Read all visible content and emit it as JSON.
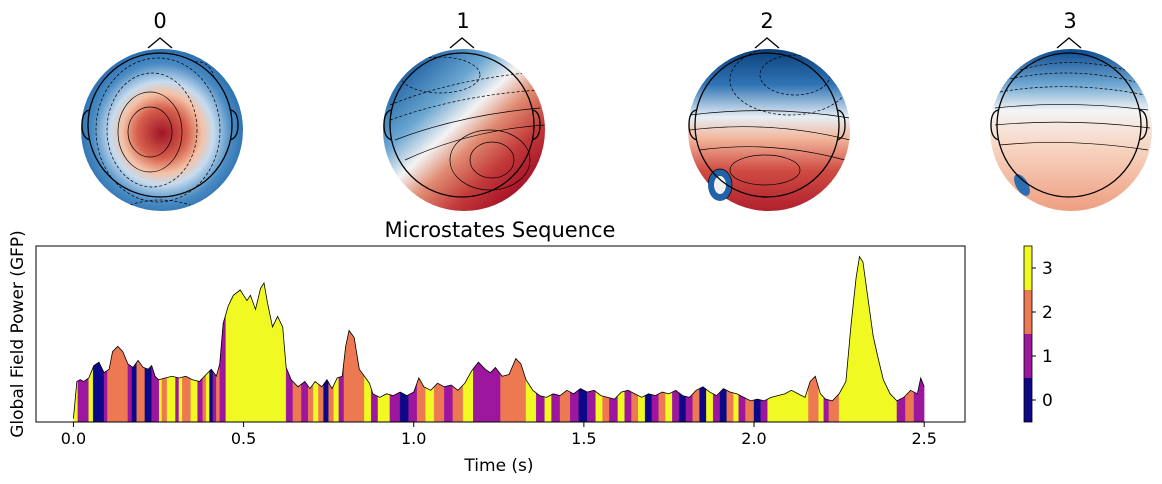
{
  "chart_data": {
    "type": "area",
    "title": "Microstates Sequence",
    "xlabel": "Time (s)",
    "ylabel": "Global Field Power (GFP)",
    "xlim": [
      -0.11,
      2.62
    ],
    "x_ticks": [
      {
        "value": 0.0,
        "label": "0.0"
      },
      {
        "value": 0.5,
        "label": "0.5"
      },
      {
        "value": 1.0,
        "label": "1.0"
      },
      {
        "value": 1.5,
        "label": "1.5"
      },
      {
        "value": 2.0,
        "label": "2.0"
      },
      {
        "value": 2.5,
        "label": "2.5"
      }
    ],
    "ylim": [
      0,
      10
    ],
    "y_ticks_shown": false,
    "grid": false,
    "colormap": "plasma",
    "state_colors": {
      "0": "#0d0887",
      "1": "#9c179e",
      "2": "#ed7953",
      "3": "#f0f921"
    },
    "colorbar": {
      "labels": [
        {
          "value": 0,
          "label": "0"
        },
        {
          "value": 1,
          "label": "1"
        },
        {
          "value": 2,
          "label": "2"
        },
        {
          "value": 3,
          "label": "3"
        }
      ],
      "range": [
        -0.5,
        3.5
      ]
    },
    "topomaps": [
      {
        "label": "0",
        "state": 0
      },
      {
        "label": "1",
        "state": 1
      },
      {
        "label": "2",
        "state": 2
      },
      {
        "label": "3",
        "state": 3
      }
    ],
    "gfp_curve": [
      [
        0.0,
        0.2
      ],
      [
        0.01,
        2.3
      ],
      [
        0.02,
        2.4
      ],
      [
        0.03,
        2.3
      ],
      [
        0.045,
        2.5
      ],
      [
        0.06,
        3.2
      ],
      [
        0.075,
        3.4
      ],
      [
        0.09,
        2.8
      ],
      [
        0.105,
        3.0
      ],
      [
        0.115,
        4.0
      ],
      [
        0.13,
        4.3
      ],
      [
        0.145,
        4.0
      ],
      [
        0.16,
        3.3
      ],
      [
        0.175,
        3.1
      ],
      [
        0.19,
        3.5
      ],
      [
        0.205,
        3.1
      ],
      [
        0.22,
        3.0
      ],
      [
        0.23,
        3.2
      ],
      [
        0.24,
        2.6
      ],
      [
        0.25,
        2.4
      ],
      [
        0.27,
        2.5
      ],
      [
        0.29,
        2.6
      ],
      [
        0.31,
        2.5
      ],
      [
        0.33,
        2.6
      ],
      [
        0.35,
        2.4
      ],
      [
        0.37,
        2.3
      ],
      [
        0.39,
        2.7
      ],
      [
        0.405,
        3.0
      ],
      [
        0.42,
        2.6
      ],
      [
        0.43,
        3.3
      ],
      [
        0.44,
        5.6
      ],
      [
        0.455,
        6.6
      ],
      [
        0.47,
        7.2
      ],
      [
        0.49,
        7.5
      ],
      [
        0.51,
        6.9
      ],
      [
        0.52,
        7.2
      ],
      [
        0.535,
        6.4
      ],
      [
        0.55,
        7.6
      ],
      [
        0.56,
        7.9
      ],
      [
        0.57,
        6.8
      ],
      [
        0.585,
        5.4
      ],
      [
        0.6,
        6.0
      ],
      [
        0.615,
        5.4
      ],
      [
        0.625,
        3.1
      ],
      [
        0.64,
        2.4
      ],
      [
        0.66,
        2.0
      ],
      [
        0.68,
        2.3
      ],
      [
        0.695,
        1.9
      ],
      [
        0.71,
        2.3
      ],
      [
        0.73,
        2.0
      ],
      [
        0.745,
        2.4
      ],
      [
        0.76,
        1.9
      ],
      [
        0.775,
        2.5
      ],
      [
        0.79,
        2.6
      ],
      [
        0.8,
        4.3
      ],
      [
        0.81,
        5.2
      ],
      [
        0.825,
        4.8
      ],
      [
        0.84,
        3.0
      ],
      [
        0.855,
        2.6
      ],
      [
        0.87,
        2.2
      ],
      [
        0.88,
        1.6
      ],
      [
        0.9,
        1.4
      ],
      [
        0.92,
        1.6
      ],
      [
        0.94,
        1.5
      ],
      [
        0.96,
        1.7
      ],
      [
        0.98,
        1.5
      ],
      [
        1.0,
        1.7
      ],
      [
        1.015,
        2.5
      ],
      [
        1.03,
        2.0
      ],
      [
        1.05,
        1.8
      ],
      [
        1.07,
        2.2
      ],
      [
        1.09,
        2.0
      ],
      [
        1.11,
        2.1
      ],
      [
        1.13,
        1.8
      ],
      [
        1.15,
        2.2
      ],
      [
        1.17,
        2.9
      ],
      [
        1.19,
        3.4
      ],
      [
        1.21,
        3.0
      ],
      [
        1.225,
        2.8
      ],
      [
        1.24,
        3.1
      ],
      [
        1.26,
        2.6
      ],
      [
        1.28,
        2.7
      ],
      [
        1.3,
        3.6
      ],
      [
        1.315,
        3.3
      ],
      [
        1.33,
        2.4
      ],
      [
        1.35,
        1.8
      ],
      [
        1.37,
        1.5
      ],
      [
        1.39,
        1.4
      ],
      [
        1.41,
        1.6
      ],
      [
        1.43,
        1.5
      ],
      [
        1.45,
        1.8
      ],
      [
        1.47,
        1.6
      ],
      [
        1.49,
        1.9
      ],
      [
        1.51,
        1.7
      ],
      [
        1.53,
        1.8
      ],
      [
        1.55,
        1.5
      ],
      [
        1.57,
        1.4
      ],
      [
        1.59,
        1.3
      ],
      [
        1.61,
        1.7
      ],
      [
        1.63,
        1.8
      ],
      [
        1.65,
        1.6
      ],
      [
        1.67,
        1.4
      ],
      [
        1.69,
        1.6
      ],
      [
        1.71,
        1.5
      ],
      [
        1.73,
        1.7
      ],
      [
        1.75,
        1.6
      ],
      [
        1.77,
        1.8
      ],
      [
        1.79,
        1.5
      ],
      [
        1.81,
        1.4
      ],
      [
        1.83,
        1.8
      ],
      [
        1.85,
        2.0
      ],
      [
        1.87,
        1.7
      ],
      [
        1.89,
        1.5
      ],
      [
        1.91,
        1.9
      ],
      [
        1.93,
        1.7
      ],
      [
        1.95,
        1.6
      ],
      [
        1.97,
        1.4
      ],
      [
        1.99,
        1.2
      ],
      [
        2.01,
        1.3
      ],
      [
        2.03,
        1.2
      ],
      [
        2.05,
        1.4
      ],
      [
        2.07,
        1.5
      ],
      [
        2.09,
        1.6
      ],
      [
        2.11,
        1.8
      ],
      [
        2.13,
        1.6
      ],
      [
        2.15,
        1.4
      ],
      [
        2.165,
        2.3
      ],
      [
        2.18,
        2.6
      ],
      [
        2.195,
        1.6
      ],
      [
        2.21,
        1.3
      ],
      [
        2.23,
        1.2
      ],
      [
        2.25,
        1.6
      ],
      [
        2.27,
        2.3
      ],
      [
        2.285,
        5.5
      ],
      [
        2.3,
        8.2
      ],
      [
        2.31,
        9.4
      ],
      [
        2.32,
        9.1
      ],
      [
        2.335,
        7.0
      ],
      [
        2.35,
        4.9
      ],
      [
        2.365,
        3.6
      ],
      [
        2.38,
        2.4
      ],
      [
        2.4,
        1.6
      ],
      [
        2.42,
        1.2
      ],
      [
        2.44,
        1.4
      ],
      [
        2.46,
        1.8
      ],
      [
        2.48,
        1.6
      ],
      [
        2.49,
        2.5
      ],
      [
        2.5,
        2.0
      ]
    ],
    "state_segments": [
      [
        0.0,
        0.013,
        3
      ],
      [
        0.013,
        0.045,
        1
      ],
      [
        0.045,
        0.058,
        3
      ],
      [
        0.058,
        0.09,
        0
      ],
      [
        0.09,
        0.1,
        1
      ],
      [
        0.1,
        0.16,
        2
      ],
      [
        0.16,
        0.172,
        1
      ],
      [
        0.172,
        0.186,
        0
      ],
      [
        0.186,
        0.21,
        2
      ],
      [
        0.21,
        0.23,
        0
      ],
      [
        0.23,
        0.252,
        1
      ],
      [
        0.252,
        0.26,
        3
      ],
      [
        0.26,
        0.275,
        2
      ],
      [
        0.275,
        0.3,
        3
      ],
      [
        0.3,
        0.31,
        1
      ],
      [
        0.31,
        0.32,
        3
      ],
      [
        0.32,
        0.345,
        2
      ],
      [
        0.345,
        0.365,
        3
      ],
      [
        0.365,
        0.38,
        1
      ],
      [
        0.38,
        0.39,
        2
      ],
      [
        0.39,
        0.4,
        3
      ],
      [
        0.4,
        0.41,
        0
      ],
      [
        0.41,
        0.42,
        1
      ],
      [
        0.42,
        0.43,
        2
      ],
      [
        0.43,
        0.448,
        1
      ],
      [
        0.448,
        0.625,
        3
      ],
      [
        0.625,
        0.645,
        1
      ],
      [
        0.645,
        0.67,
        2
      ],
      [
        0.67,
        0.69,
        1
      ],
      [
        0.69,
        0.705,
        2
      ],
      [
        0.705,
        0.72,
        3
      ],
      [
        0.72,
        0.735,
        2
      ],
      [
        0.735,
        0.75,
        0
      ],
      [
        0.75,
        0.765,
        2
      ],
      [
        0.765,
        0.78,
        3
      ],
      [
        0.78,
        0.795,
        1
      ],
      [
        0.795,
        0.855,
        2
      ],
      [
        0.855,
        0.875,
        3
      ],
      [
        0.875,
        0.895,
        1
      ],
      [
        0.895,
        0.93,
        3
      ],
      [
        0.93,
        0.96,
        1
      ],
      [
        0.96,
        0.985,
        0
      ],
      [
        0.985,
        1.01,
        1
      ],
      [
        1.01,
        1.035,
        2
      ],
      [
        1.035,
        1.06,
        3
      ],
      [
        1.06,
        1.09,
        2
      ],
      [
        1.09,
        1.115,
        1
      ],
      [
        1.115,
        1.145,
        2
      ],
      [
        1.145,
        1.175,
        3
      ],
      [
        1.175,
        1.255,
        1
      ],
      [
        1.255,
        1.33,
        2
      ],
      [
        1.33,
        1.36,
        3
      ],
      [
        1.36,
        1.385,
        1
      ],
      [
        1.385,
        1.405,
        3
      ],
      [
        1.405,
        1.43,
        1
      ],
      [
        1.43,
        1.46,
        2
      ],
      [
        1.46,
        1.485,
        1
      ],
      [
        1.485,
        1.51,
        0
      ],
      [
        1.51,
        1.535,
        1
      ],
      [
        1.535,
        1.555,
        3
      ],
      [
        1.555,
        1.575,
        2
      ],
      [
        1.575,
        1.6,
        1
      ],
      [
        1.6,
        1.62,
        3
      ],
      [
        1.62,
        1.64,
        1
      ],
      [
        1.64,
        1.66,
        2
      ],
      [
        1.66,
        1.68,
        3
      ],
      [
        1.68,
        1.7,
        0
      ],
      [
        1.7,
        1.72,
        1
      ],
      [
        1.72,
        1.74,
        2
      ],
      [
        1.74,
        1.76,
        3
      ],
      [
        1.76,
        1.78,
        1
      ],
      [
        1.78,
        1.8,
        0
      ],
      [
        1.8,
        1.82,
        1
      ],
      [
        1.82,
        1.84,
        2
      ],
      [
        1.84,
        1.86,
        0
      ],
      [
        1.86,
        1.88,
        3
      ],
      [
        1.88,
        1.9,
        1
      ],
      [
        1.9,
        1.92,
        0
      ],
      [
        1.92,
        1.94,
        2
      ],
      [
        1.94,
        1.955,
        3
      ],
      [
        1.955,
        1.975,
        1
      ],
      [
        1.975,
        2.0,
        2
      ],
      [
        2.0,
        2.02,
        0
      ],
      [
        2.02,
        2.04,
        1
      ],
      [
        2.04,
        2.16,
        3
      ],
      [
        2.16,
        2.19,
        2
      ],
      [
        2.19,
        2.205,
        3
      ],
      [
        2.205,
        2.22,
        1
      ],
      [
        2.22,
        2.25,
        2
      ],
      [
        2.25,
        2.42,
        3
      ],
      [
        2.42,
        2.445,
        1
      ],
      [
        2.445,
        2.47,
        2
      ],
      [
        2.47,
        2.5,
        1
      ]
    ]
  }
}
